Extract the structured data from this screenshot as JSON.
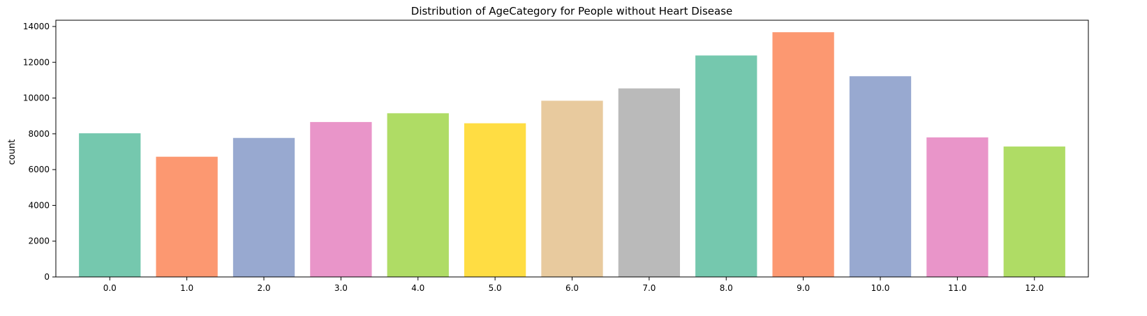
{
  "chart_data": {
    "type": "bar",
    "title": "Distribution of AgeCategory for People without Heart Disease",
    "xlabel": "",
    "ylabel": "count",
    "categories": [
      "0.0",
      "1.0",
      "2.0",
      "3.0",
      "4.0",
      "5.0",
      "6.0",
      "7.0",
      "8.0",
      "9.0",
      "10.0",
      "11.0",
      "12.0"
    ],
    "values": [
      8030,
      6720,
      7770,
      8660,
      9150,
      8590,
      9850,
      10540,
      12380,
      13680,
      11220,
      7800,
      7290
    ],
    "ylim": [
      0,
      14350
    ],
    "yticks": [
      0,
      2000,
      4000,
      6000,
      8000,
      10000,
      12000,
      14000
    ],
    "grid": false,
    "legend": "none",
    "colors": [
      "#66c2a5",
      "#fc8d62",
      "#8da0cb",
      "#e78ac3",
      "#a6d854",
      "#ffd92f",
      "#e5c494",
      "#b3b3b3",
      "#66c2a5",
      "#fc8d62",
      "#8da0cb",
      "#e78ac3",
      "#a6d854"
    ],
    "bar_alpha": 0.9
  }
}
